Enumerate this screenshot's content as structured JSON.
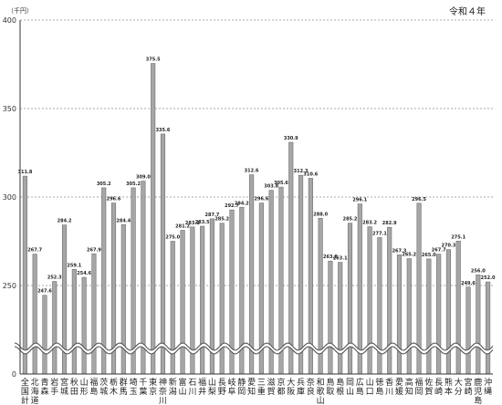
{
  "chart_data": {
    "type": "bar",
    "title": "令和４年",
    "ylabel": "（千円）",
    "xlabel": "",
    "ylim": [
      0,
      400
    ],
    "yticks": [
      0,
      250,
      300,
      350,
      400
    ],
    "axis_break": [
      0,
      235
    ],
    "grid": true,
    "categories": [
      "全国計",
      "北海道",
      "青森",
      "岩手",
      "宮城",
      "秋田",
      "山形",
      "福島",
      "茨城",
      "栃木",
      "群馬",
      "埼玉",
      "千葉",
      "東京",
      "神奈川",
      "新潟",
      "富山",
      "石川",
      "福井",
      "山梨",
      "長野",
      "岐阜",
      "静岡",
      "愛知",
      "三重",
      "滋賀",
      "京都",
      "大阪",
      "兵庫",
      "奈良",
      "和歌山",
      "鳥取",
      "島根",
      "岡山",
      "広島",
      "山口",
      "徳島",
      "香川",
      "愛媛",
      "高知",
      "福岡",
      "佐賀",
      "長崎",
      "熊本",
      "大分",
      "宮崎",
      "鹿児島",
      "沖縄"
    ],
    "values": [
      311.8,
      267.7,
      247.6,
      252.3,
      284.2,
      259.1,
      254.6,
      267.9,
      305.2,
      296.6,
      284.4,
      305.2,
      309.0,
      375.5,
      335.6,
      275.0,
      281.2,
      283.1,
      283.5,
      287.7,
      285.2,
      292.7,
      294.2,
      312.6,
      296.6,
      303.8,
      305.6,
      330.9,
      312.3,
      310.6,
      288.0,
      263.8,
      263.1,
      285.2,
      296.1,
      283.2,
      277.1,
      282.9,
      267.3,
      265.2,
      296.5,
      265.0,
      267.7,
      270.3,
      275.1,
      249.6,
      256.0,
      252.0
    ],
    "value_labels": [
      "311.8",
      "267.7",
      "247.6",
      "252.3",
      "284.2",
      "259.1",
      "254.6",
      "267.9",
      "305.2",
      "296.6",
      "284.4",
      "305.2",
      "309.0",
      "375.5",
      "335.6",
      "275.0",
      "281.2",
      "283.1",
      "283.5",
      "287.7",
      "285.2",
      "292.7",
      "294.2",
      "312.6",
      "296.6",
      "303.8",
      "305.6",
      "330.9",
      "312.3",
      "310.6",
      "288.0",
      "263.8",
      "263.1",
      "285.2",
      "296.1",
      "283.2",
      "277.1",
      "282.9",
      "267.3",
      "265.2",
      "296.5",
      "265.0",
      "267.7",
      "270.3",
      "275.1",
      "249.6",
      "256.0",
      "252.0"
    ]
  },
  "colors": {
    "bar_fill": "#a6a6a6",
    "bar_stroke": "#6e6e6e",
    "gridline": "#555555",
    "text": "#222222"
  }
}
